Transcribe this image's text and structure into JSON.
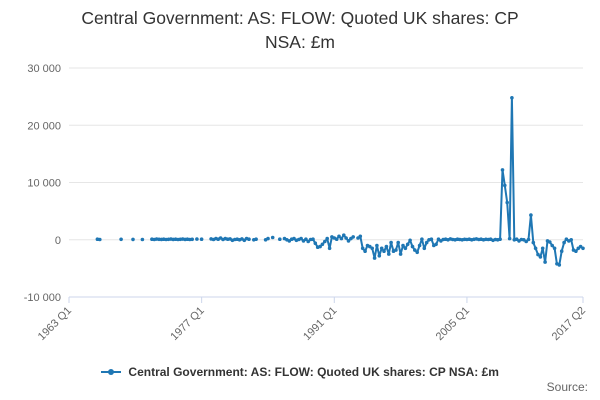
{
  "chart_data": {
    "type": "line",
    "title_lines": [
      "Central Government: AS: FLOW: Quoted UK shares: CP",
      "NSA: £m"
    ],
    "xlabel": "",
    "ylabel": "",
    "x_tick_labels": [
      "1963 Q1",
      "1977 Q1",
      "1991 Q1",
      "2005 Q1",
      "2017 Q2"
    ],
    "y_tick_labels": [
      "30 000",
      "20 000",
      "10 000",
      "0",
      "-10 000"
    ],
    "ylim": [
      -10000,
      30000
    ],
    "xlim": [
      "1963 Q1",
      "2017 Q2"
    ],
    "grid": "horizontal",
    "legend_position": "bottom-center",
    "series": [
      {
        "name": "Central Government: AS: FLOW: Quoted UK shares: CP NSA: £m",
        "color": "#1f77b4",
        "points": [
          [
            "1966 Q1",
            100
          ],
          [
            "1966 Q2",
            50
          ],
          [
            "1968 Q3",
            80
          ],
          [
            "1969 Q4",
            60
          ],
          [
            "1970 Q4",
            50
          ],
          [
            "1971 Q4",
            100
          ],
          [
            "1972 Q1",
            50
          ],
          [
            "1972 Q2",
            120
          ],
          [
            "1972 Q3",
            80
          ],
          [
            "1972 Q4",
            60
          ],
          [
            "1973 Q1",
            100
          ],
          [
            "1973 Q2",
            50
          ],
          [
            "1973 Q3",
            80
          ],
          [
            "1973 Q4",
            120
          ],
          [
            "1974 Q1",
            60
          ],
          [
            "1974 Q2",
            100
          ],
          [
            "1974 Q3",
            50
          ],
          [
            "1974 Q4",
            80
          ],
          [
            "1975 Q1",
            120
          ],
          [
            "1975 Q2",
            60
          ],
          [
            "1975 Q3",
            100
          ],
          [
            "1975 Q4",
            50
          ],
          [
            "1976 Q1",
            80
          ],
          [
            "1976 Q3",
            120
          ],
          [
            "1977 Q1",
            100
          ],
          [
            "1978 Q1",
            150
          ],
          [
            "1978 Q2",
            50
          ],
          [
            "1978 Q3",
            200
          ],
          [
            "1978 Q4",
            100
          ],
          [
            "1979 Q1",
            300
          ],
          [
            "1979 Q2",
            50
          ],
          [
            "1979 Q3",
            200
          ],
          [
            "1979 Q4",
            100
          ],
          [
            "1980 Q1",
            150
          ],
          [
            "1980 Q2",
            -100
          ],
          [
            "1980 Q3",
            50
          ],
          [
            "1980 Q4",
            100
          ],
          [
            "1981 Q1",
            0
          ],
          [
            "1981 Q2",
            150
          ],
          [
            "1981 Q3",
            -100
          ],
          [
            "1981 Q4",
            200
          ],
          [
            "1982 Q1",
            100
          ],
          [
            "1982 Q3",
            0
          ],
          [
            "1982 Q4",
            100
          ],
          [
            "1983 Q4",
            0
          ],
          [
            "1984 Q1",
            200
          ],
          [
            "1984 Q3",
            400
          ],
          [
            "1985 Q2",
            100
          ],
          [
            "1985 Q4",
            200
          ],
          [
            "1986 Q1",
            0
          ],
          [
            "1986 Q2",
            -200
          ],
          [
            "1986 Q3",
            100
          ],
          [
            "1986 Q4",
            200
          ],
          [
            "1987 Q1",
            -100
          ],
          [
            "1987 Q2",
            50
          ],
          [
            "1987 Q3",
            200
          ],
          [
            "1987 Q4",
            -200
          ],
          [
            "1988 Q1",
            100
          ],
          [
            "1988 Q2",
            -300
          ],
          [
            "1988 Q3",
            50
          ],
          [
            "1988 Q4",
            100
          ],
          [
            "1989 Q1",
            -600
          ],
          [
            "1989 Q2",
            -1300
          ],
          [
            "1989 Q3",
            -1200
          ],
          [
            "1989 Q4",
            -800
          ],
          [
            "1990 Q1",
            -300
          ],
          [
            "1990 Q2",
            200
          ],
          [
            "1990 Q3",
            -1500
          ],
          [
            "1990 Q4",
            500
          ],
          [
            "1991 Q1",
            300
          ],
          [
            "1991 Q2",
            100
          ],
          [
            "1991 Q3",
            600
          ],
          [
            "1991 Q4",
            200
          ],
          [
            "1992 Q1",
            800
          ],
          [
            "1992 Q2",
            300
          ],
          [
            "1992 Q3",
            -200
          ],
          [
            "1992 Q4",
            200
          ],
          [
            "1993 Q1",
            500
          ],
          [
            "1993 Q3",
            300
          ],
          [
            "1993 Q4",
            600
          ],
          [
            "1994 Q1",
            -1500
          ],
          [
            "1994 Q2",
            -2000
          ],
          [
            "1994 Q3",
            -1000
          ],
          [
            "1994 Q4",
            -1200
          ],
          [
            "1995 Q1",
            -1500
          ],
          [
            "1995 Q2",
            -3200
          ],
          [
            "1995 Q3",
            -1000
          ],
          [
            "1995 Q4",
            -2800
          ],
          [
            "1996 Q1",
            -1500
          ],
          [
            "1996 Q2",
            -2000
          ],
          [
            "1996 Q3",
            -1200
          ],
          [
            "1996 Q4",
            -2500
          ],
          [
            "1997 Q1",
            -500
          ],
          [
            "1997 Q2",
            -2000
          ],
          [
            "1997 Q3",
            -1800
          ],
          [
            "1997 Q4",
            -500
          ],
          [
            "1998 Q1",
            -2500
          ],
          [
            "1998 Q2",
            -1000
          ],
          [
            "1998 Q3",
            -1500
          ],
          [
            "1998 Q4",
            -800
          ],
          [
            "1999 Q1",
            -100
          ],
          [
            "1999 Q2",
            -1200
          ],
          [
            "1999 Q3",
            -1800
          ],
          [
            "1999 Q4",
            -2200
          ],
          [
            "2000 Q1",
            -1000
          ],
          [
            "2000 Q2",
            100
          ],
          [
            "2000 Q3",
            -1500
          ],
          [
            "2000 Q4",
            -500
          ],
          [
            "2001 Q1",
            0
          ],
          [
            "2001 Q2",
            100
          ],
          [
            "2001 Q3",
            -1000
          ],
          [
            "2001 Q4",
            -800
          ],
          [
            "2002 Q1",
            100
          ],
          [
            "2002 Q2",
            -200
          ],
          [
            "2002 Q3",
            50
          ],
          [
            "2002 Q4",
            100
          ],
          [
            "2003 Q1",
            0
          ],
          [
            "2003 Q2",
            150
          ],
          [
            "2003 Q3",
            50
          ],
          [
            "2003 Q4",
            0
          ],
          [
            "2004 Q1",
            100
          ],
          [
            "2004 Q2",
            50
          ],
          [
            "2004 Q3",
            0
          ],
          [
            "2004 Q4",
            80
          ],
          [
            "2005 Q1",
            50
          ],
          [
            "2005 Q2",
            100
          ],
          [
            "2005 Q3",
            0
          ],
          [
            "2005 Q4",
            80
          ],
          [
            "2006 Q1",
            150
          ],
          [
            "2006 Q2",
            50
          ],
          [
            "2006 Q3",
            100
          ],
          [
            "2006 Q4",
            0
          ],
          [
            "2007 Q1",
            80
          ],
          [
            "2007 Q2",
            50
          ],
          [
            "2007 Q3",
            100
          ],
          [
            "2007 Q4",
            -100
          ],
          [
            "2008 Q1",
            50
          ],
          [
            "2008 Q2",
            0
          ],
          [
            "2008 Q3",
            100
          ],
          [
            "2008 Q4",
            12200
          ],
          [
            "2009 Q1",
            9500
          ],
          [
            "2009 Q2",
            6500
          ],
          [
            "2009 Q3",
            200
          ],
          [
            "2009 Q4",
            24800
          ],
          [
            "2010 Q1",
            0
          ],
          [
            "2010 Q2",
            100
          ],
          [
            "2010 Q3",
            -200
          ],
          [
            "2010 Q4",
            50
          ],
          [
            "2011 Q1",
            0
          ],
          [
            "2011 Q2",
            -300
          ],
          [
            "2011 Q3",
            50
          ],
          [
            "2011 Q4",
            4300
          ],
          [
            "2012 Q1",
            -500
          ],
          [
            "2012 Q2",
            -1500
          ],
          [
            "2012 Q3",
            -2600
          ],
          [
            "2012 Q4",
            -3000
          ],
          [
            "2013 Q1",
            -1500
          ],
          [
            "2013 Q2",
            -3900
          ],
          [
            "2013 Q3",
            -200
          ],
          [
            "2013 Q4",
            -400
          ],
          [
            "2014 Q1",
            -1000
          ],
          [
            "2014 Q2",
            -1500
          ],
          [
            "2014 Q3",
            -4200
          ],
          [
            "2014 Q4",
            -4400
          ],
          [
            "2015 Q1",
            -2000
          ],
          [
            "2015 Q2",
            -500
          ],
          [
            "2015 Q3",
            100
          ],
          [
            "2015 Q4",
            -200
          ],
          [
            "2016 Q1",
            0
          ],
          [
            "2016 Q2",
            -1800
          ],
          [
            "2016 Q3",
            -2000
          ],
          [
            "2016 Q4",
            -1500
          ],
          [
            "2017 Q1",
            -1200
          ],
          [
            "2017 Q2",
            -1500
          ]
        ]
      }
    ]
  },
  "source_label": "Source:"
}
